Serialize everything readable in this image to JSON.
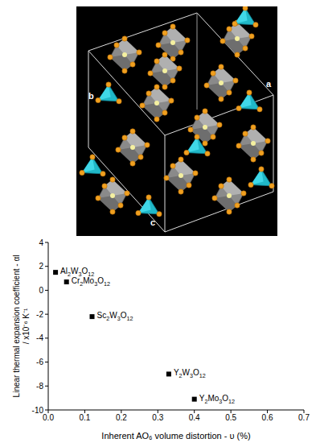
{
  "chart_data": {
    "type": "scatter",
    "x_label": "Inherent AO₆ volume distortion - υ (%)",
    "y_label": [
      "Linear thermal expansion coefficient - αl",
      "/ x10⁻⁶ K⁻¹"
    ],
    "x": [
      0.02,
      0.05,
      0.12,
      0.33,
      0.4
    ],
    "values": [
      1.5,
      0.7,
      -2.2,
      -7.0,
      -9.1
    ],
    "point_labels": [
      "Al2W3O12",
      "Cr2Mo3O12",
      "Sc2W3O12",
      "Y2W3O12",
      "Y2Mo3O12"
    ],
    "color": "#000000",
    "marker": "square",
    "xlim": [
      0,
      0.7
    ],
    "xticks": [
      {
        "value": 0,
        "label": "0.0"
      },
      0.1,
      0.2,
      0.3,
      0.4,
      0.5,
      0.6,
      0.7
    ],
    "ylim": [
      -10,
      4
    ],
    "yticks": [
      -10,
      -8,
      -6,
      -4,
      -2,
      0,
      2,
      4
    ]
  },
  "structure_image": {
    "axis_labels": [
      "b",
      "a",
      "c"
    ]
  }
}
